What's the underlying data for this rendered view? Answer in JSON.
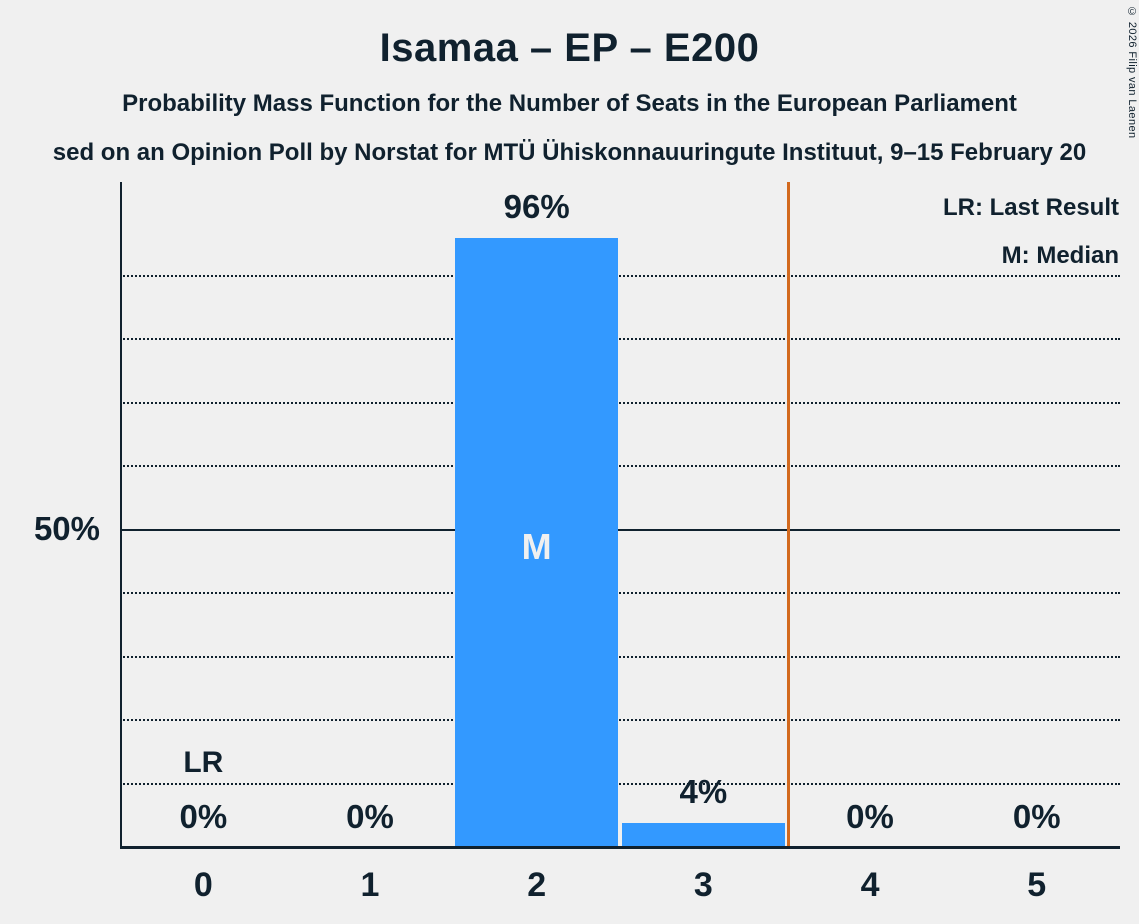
{
  "chart_data": {
    "type": "bar",
    "title": "Isamaa – EP – E200",
    "subtitle": "Probability Mass Function for the Number of Seats in the European Parliament",
    "source_line": "sed on an Opinion Poll by Norstat for MTÜ Ühiskonnauuringute Instituut, 9–15 February 20",
    "copyright": "© 2026 Filip van Laenen",
    "legend": [
      "LR: Last Result",
      "M: Median"
    ],
    "legend_position": "top-right",
    "categories": [
      "0",
      "1",
      "2",
      "3",
      "4",
      "5"
    ],
    "values": [
      0,
      0,
      96,
      4,
      0,
      0
    ],
    "value_labels": [
      "0%",
      "0%",
      "96%",
      "4%",
      "0%",
      "0%"
    ],
    "xlabel": "",
    "ylabel": "",
    "ylim": [
      0,
      100
    ],
    "y_tick_labels": [
      "50%"
    ],
    "solid_gridline_at": 50,
    "dotted_gridlines_at": [
      10,
      20,
      30,
      40,
      60,
      70,
      80,
      90
    ],
    "median_marker": "M",
    "median_seats": 2,
    "last_result_marker": "LR",
    "last_result_seats": 0,
    "threshold_line_x": 3.5,
    "colors": {
      "bar": "#3399ff",
      "text": "#10212e",
      "background": "#f0f0f0",
      "threshold_line": "#d2691e",
      "median_letter": "#f0f0f0"
    }
  }
}
